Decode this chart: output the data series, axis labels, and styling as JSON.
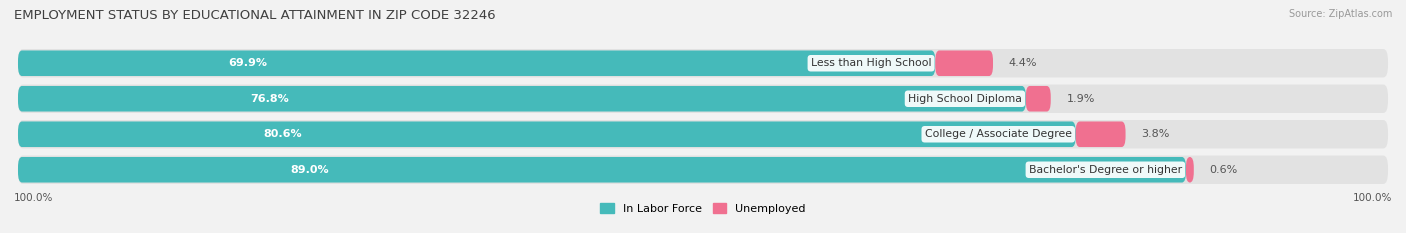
{
  "title": "EMPLOYMENT STATUS BY EDUCATIONAL ATTAINMENT IN ZIP CODE 32246",
  "source": "Source: ZipAtlas.com",
  "categories": [
    "Less than High School",
    "High School Diploma",
    "College / Associate Degree",
    "Bachelor's Degree or higher"
  ],
  "in_labor_force": [
    69.9,
    76.8,
    80.6,
    89.0
  ],
  "unemployed": [
    4.4,
    1.9,
    3.8,
    0.6
  ],
  "labor_force_color": "#45BABA",
  "unemployed_color": "#F07090",
  "background_color": "#F2F2F2",
  "row_bg_color": "#E2E2E2",
  "title_fontsize": 9.5,
  "label_fontsize": 8,
  "x_left_label": "100.0%",
  "x_right_label": "100.0%",
  "xmin": 0,
  "xmax": 105
}
